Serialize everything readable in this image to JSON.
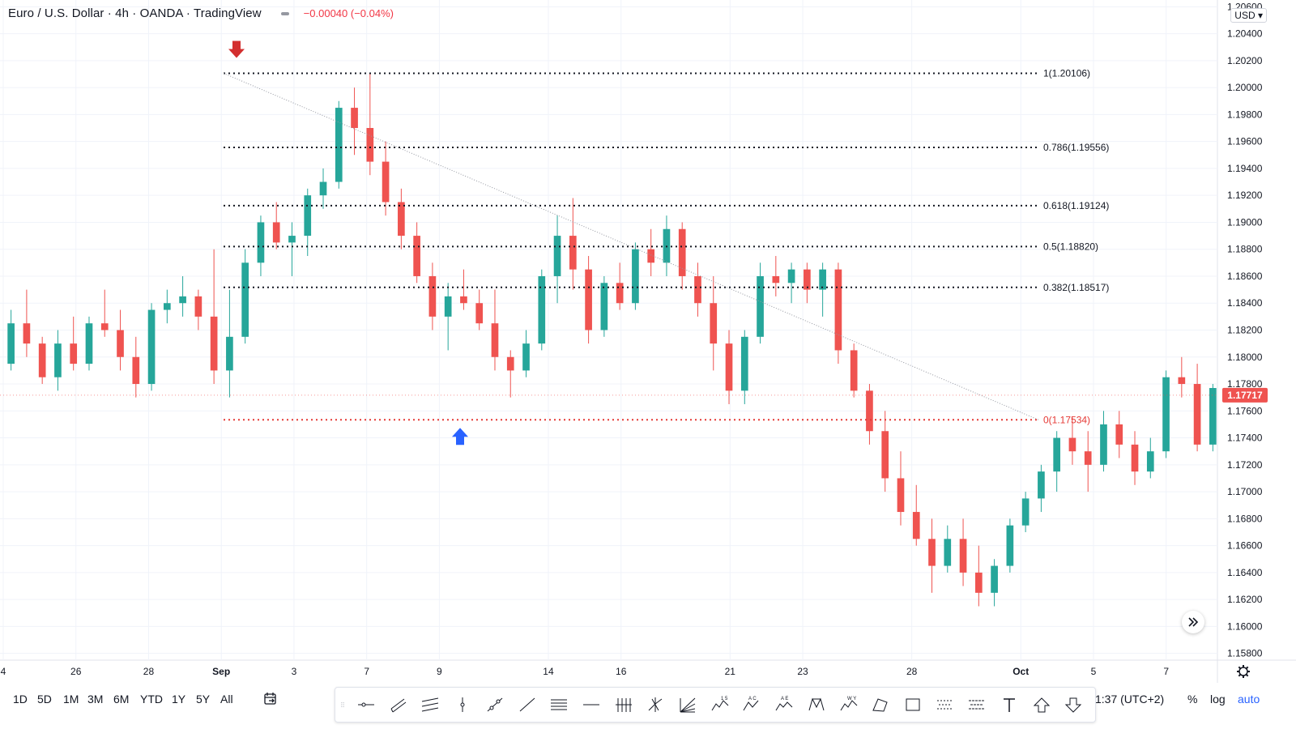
{
  "legend": {
    "title": "Euro / U.S. Dollar · 4h · OANDA · TradingView",
    "change": "−0.00040 (−0.04%)"
  },
  "currency": "USD ▾",
  "chart_data": {
    "type": "candlestick",
    "symbol": "EURUSD",
    "timeframe": "4h",
    "ylim": [
      1.1575,
      1.2065
    ],
    "y_ticks": [
      "1.15800",
      "1.16000",
      "1.16200",
      "1.16400",
      "1.16600",
      "1.16800",
      "1.17000",
      "1.17200",
      "1.17400",
      "1.17600",
      "1.17800",
      "1.18000",
      "1.18200",
      "1.18400",
      "1.18600",
      "1.18800",
      "1.19000",
      "1.19200",
      "1.19400",
      "1.19600",
      "1.19800",
      "1.20000",
      "1.20200",
      "1.20400",
      "1.20600"
    ],
    "x_ticks": [
      {
        "label": "4",
        "i": 0
      },
      {
        "label": "26",
        "i": 16
      },
      {
        "label": "28",
        "i": 32
      },
      {
        "label": "Sep",
        "i": 48
      },
      {
        "label": "3",
        "i": 64
      },
      {
        "label": "7",
        "i": 80
      },
      {
        "label": "9",
        "i": 96
      },
      {
        "label": "14",
        "i": 120
      },
      {
        "label": "16",
        "i": 136
      },
      {
        "label": "21",
        "i": 160
      },
      {
        "label": "23",
        "i": 176
      },
      {
        "label": "28",
        "i": 200
      },
      {
        "label": "Oct",
        "i": 224
      },
      {
        "label": "5",
        "i": 240
      },
      {
        "label": "7",
        "i": 256
      }
    ],
    "last_price": "1.17717",
    "last_price_value": 1.17717,
    "candles_sampled": [
      [
        1.1795,
        1.1835,
        1.179,
        1.1825
      ],
      [
        1.1825,
        1.185,
        1.18,
        1.181
      ],
      [
        1.181,
        1.1815,
        1.178,
        1.1785
      ],
      [
        1.1785,
        1.182,
        1.1775,
        1.181
      ],
      [
        1.181,
        1.183,
        1.179,
        1.1795
      ],
      [
        1.1795,
        1.183,
        1.179,
        1.1825
      ],
      [
        1.1825,
        1.185,
        1.1815,
        1.182
      ],
      [
        1.182,
        1.1835,
        1.179,
        1.18
      ],
      [
        1.18,
        1.1815,
        1.177,
        1.178
      ],
      [
        1.178,
        1.184,
        1.1775,
        1.1835
      ],
      [
        1.1835,
        1.185,
        1.1825,
        1.184
      ],
      [
        1.184,
        1.186,
        1.183,
        1.1845
      ],
      [
        1.1845,
        1.185,
        1.182,
        1.183
      ],
      [
        1.183,
        1.188,
        1.178,
        1.179
      ],
      [
        1.179,
        1.185,
        1.177,
        1.1815
      ],
      [
        1.1815,
        1.188,
        1.181,
        1.187
      ],
      [
        1.187,
        1.1905,
        1.186,
        1.19
      ],
      [
        1.19,
        1.1915,
        1.188,
        1.1885
      ],
      [
        1.1885,
        1.19,
        1.186,
        1.189
      ],
      [
        1.189,
        1.1925,
        1.1875,
        1.192
      ],
      [
        1.192,
        1.194,
        1.191,
        1.193
      ],
      [
        1.193,
        1.199,
        1.1925,
        1.1985
      ],
      [
        1.1985,
        1.2,
        1.195,
        1.197
      ],
      [
        1.197,
        1.2011,
        1.1935,
        1.1945
      ],
      [
        1.1945,
        1.196,
        1.1905,
        1.1915
      ],
      [
        1.1915,
        1.1925,
        1.188,
        1.189
      ],
      [
        1.189,
        1.19,
        1.1855,
        1.186
      ],
      [
        1.186,
        1.187,
        1.182,
        1.183
      ],
      [
        1.183,
        1.1855,
        1.1805,
        1.1845
      ],
      [
        1.1845,
        1.1865,
        1.1835,
        1.184
      ],
      [
        1.184,
        1.185,
        1.182,
        1.1825
      ],
      [
        1.1825,
        1.185,
        1.179,
        1.18
      ],
      [
        1.18,
        1.1805,
        1.177,
        1.179
      ],
      [
        1.179,
        1.182,
        1.1785,
        1.181
      ],
      [
        1.181,
        1.1865,
        1.1805,
        1.186
      ],
      [
        1.186,
        1.1905,
        1.184,
        1.189
      ],
      [
        1.189,
        1.1918,
        1.185,
        1.1865
      ],
      [
        1.1865,
        1.1875,
        1.181,
        1.182
      ],
      [
        1.182,
        1.186,
        1.1815,
        1.1855
      ],
      [
        1.1855,
        1.187,
        1.1835,
        1.184
      ],
      [
        1.184,
        1.1885,
        1.1835,
        1.188
      ],
      [
        1.188,
        1.1895,
        1.186,
        1.187
      ],
      [
        1.187,
        1.1905,
        1.186,
        1.1895
      ],
      [
        1.1895,
        1.19,
        1.185,
        1.186
      ],
      [
        1.186,
        1.187,
        1.183,
        1.184
      ],
      [
        1.184,
        1.186,
        1.179,
        1.181
      ],
      [
        1.181,
        1.182,
        1.1765,
        1.1775
      ],
      [
        1.1775,
        1.182,
        1.1765,
        1.1815
      ],
      [
        1.1815,
        1.187,
        1.181,
        1.186
      ],
      [
        1.186,
        1.1875,
        1.1845,
        1.1855
      ],
      [
        1.1855,
        1.187,
        1.184,
        1.1865
      ],
      [
        1.1865,
        1.187,
        1.184,
        1.185
      ],
      [
        1.185,
        1.187,
        1.183,
        1.1865
      ],
      [
        1.1865,
        1.187,
        1.1795,
        1.1805
      ],
      [
        1.1805,
        1.181,
        1.177,
        1.1775
      ],
      [
        1.1775,
        1.178,
        1.1735,
        1.1745
      ],
      [
        1.1745,
        1.176,
        1.17,
        1.171
      ],
      [
        1.171,
        1.173,
        1.1675,
        1.1685
      ],
      [
        1.1685,
        1.1705,
        1.166,
        1.1665
      ],
      [
        1.1665,
        1.168,
        1.1625,
        1.1645
      ],
      [
        1.1645,
        1.1675,
        1.164,
        1.1665
      ],
      [
        1.1665,
        1.168,
        1.163,
        1.164
      ],
      [
        1.164,
        1.166,
        1.1615,
        1.1625
      ],
      [
        1.1625,
        1.165,
        1.1615,
        1.1645
      ],
      [
        1.1645,
        1.168,
        1.164,
        1.1675
      ],
      [
        1.1675,
        1.17,
        1.167,
        1.1695
      ],
      [
        1.1695,
        1.172,
        1.1685,
        1.1715
      ],
      [
        1.1715,
        1.1745,
        1.17,
        1.174
      ],
      [
        1.174,
        1.1755,
        1.172,
        1.173
      ],
      [
        1.173,
        1.1745,
        1.17,
        1.172
      ],
      [
        1.172,
        1.176,
        1.1715,
        1.175
      ],
      [
        1.175,
        1.176,
        1.1725,
        1.1735
      ],
      [
        1.1735,
        1.1745,
        1.1705,
        1.1715
      ],
      [
        1.1715,
        1.174,
        1.171,
        1.173
      ],
      [
        1.173,
        1.179,
        1.1725,
        1.1785
      ],
      [
        1.1785,
        1.18,
        1.177,
        1.178
      ],
      [
        1.178,
        1.1795,
        1.173,
        1.1735
      ],
      [
        1.1735,
        1.178,
        1.173,
        1.1777
      ]
    ],
    "annotations": [
      {
        "type": "arrow_marker",
        "direction": "down",
        "color": "#d32f2f",
        "at_price": 1.20106
      },
      {
        "type": "arrow_marker",
        "direction": "up",
        "color": "#2962ff",
        "at_price": 1.17534
      },
      {
        "type": "trendline",
        "from_price": 1.20106,
        "to_price": 1.17534,
        "style": "dotted"
      }
    ],
    "fibonacci": [
      {
        "label": "1(1.20106)",
        "price": 1.20106,
        "color": "#131722"
      },
      {
        "label": "0.786(1.19556)",
        "price": 1.19556,
        "color": "#131722"
      },
      {
        "label": "0.618(1.19124)",
        "price": 1.19124,
        "color": "#131722"
      },
      {
        "label": "0.5(1.18820)",
        "price": 1.1882,
        "color": "#131722"
      },
      {
        "label": "0.382(1.18517)",
        "price": 1.18517,
        "color": "#131722"
      },
      {
        "label": "0(1.17534)",
        "price": 1.17534,
        "color": "#e53935"
      }
    ],
    "colors": {
      "up": "#26a69a",
      "down": "#ef5350",
      "grid": "#f0f3fa",
      "axis": "#e0e3eb"
    }
  },
  "ranges": [
    "1D",
    "5D",
    "1M",
    "3M",
    "6M",
    "YTD",
    "1Y",
    "5Y",
    "All"
  ],
  "tools": [
    "drag-handle-icon",
    "horizontal-ray-icon",
    "parallel-channel-icon",
    "regression-trend-icon",
    "vertical-line-icon",
    "trend-angle-icon",
    "trend-line-icon",
    "horizontal-lines-icon",
    "horizontal-line-icon",
    "vertical-lines-icon",
    "pitchfork-icon",
    "fib-fan-icon",
    "elliott-12345-icon",
    "abcd-pattern-icon",
    "ae-pattern-icon",
    "xabcd-pattern-icon",
    "wxy-pattern-icon",
    "polyline-icon",
    "rectangle-icon",
    "long-position-icon",
    "short-position-icon",
    "text-icon",
    "arrow-up-icon",
    "arrow-down-icon"
  ],
  "time_readout": "1:37 (UTC+2)",
  "right_buttons": {
    "percent": "%",
    "log": "log",
    "auto": "auto"
  }
}
